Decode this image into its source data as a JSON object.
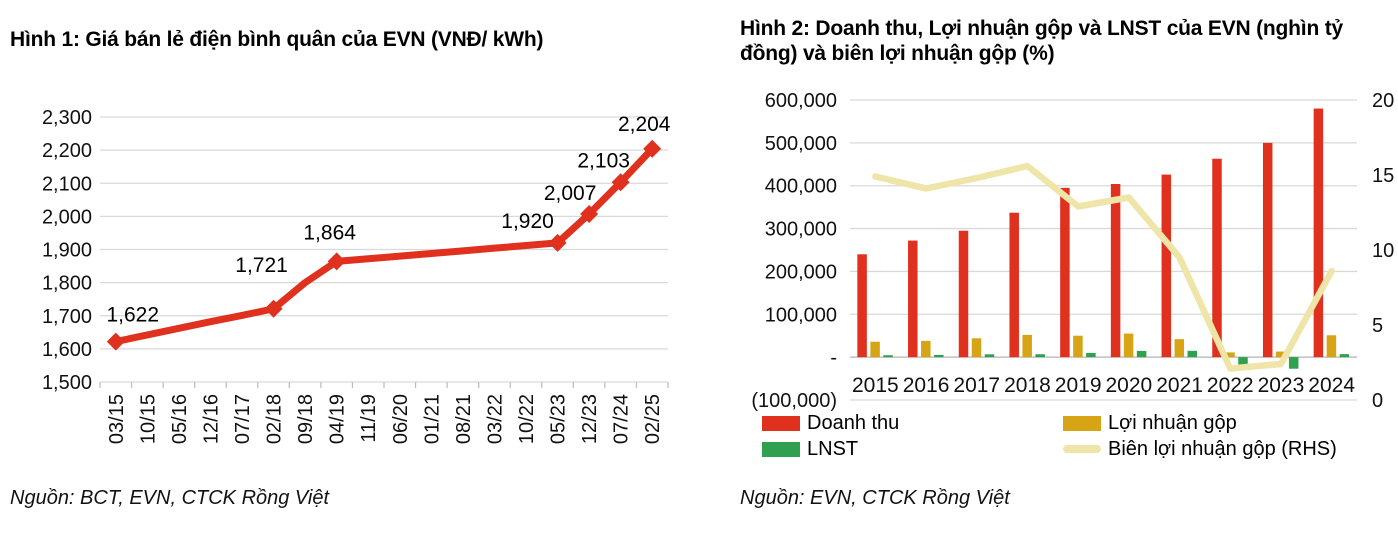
{
  "chart_data": [
    {
      "type": "line",
      "title": "Hình 1: Giá bán lẻ điện bình quân của EVN (VNĐ/ kWh)",
      "source": "Nguồn: BCT, EVN, CTCK Rồng Việt",
      "x": [
        "03/15",
        "10/15",
        "05/16",
        "12/16",
        "07/17",
        "02/18",
        "09/18",
        "04/19",
        "11/19",
        "06/20",
        "01/21",
        "08/21",
        "03/22",
        "10/22",
        "05/23",
        "12/23",
        "07/24",
        "02/25"
      ],
      "values": [
        1622,
        1642,
        1662,
        1682,
        1701,
        1721,
        1800,
        1864,
        1872,
        1880,
        1888,
        1896,
        1904,
        1912,
        1920,
        2007,
        2103,
        2204
      ],
      "labeled_points": [
        {
          "x": "03/15",
          "value": 1622,
          "label": "1,622"
        },
        {
          "x": "02/18",
          "value": 1721,
          "label": "1,721"
        },
        {
          "x": "04/19",
          "value": 1864,
          "label": "1,864"
        },
        {
          "x": "05/23",
          "value": 1920,
          "label": "1,920"
        },
        {
          "x": "12/23",
          "value": 2007,
          "label": "2,007"
        },
        {
          "x": "07/24",
          "value": 2103,
          "label": "2,103"
        },
        {
          "x": "02/25",
          "value": 2204,
          "label": "2,204"
        }
      ],
      "ylim": [
        1500,
        2300
      ],
      "yticks": [
        {
          "value": 2300,
          "label": "2,300"
        },
        {
          "value": 2200,
          "label": "2,200"
        },
        {
          "value": 2100,
          "label": "2,100"
        },
        {
          "value": 2000,
          "label": "2,000"
        },
        {
          "value": 1900,
          "label": "1,900"
        },
        {
          "value": 1800,
          "label": "1,800"
        },
        {
          "value": 1700,
          "label": "1,700"
        },
        {
          "value": 1600,
          "label": "1,600"
        },
        {
          "value": 1500,
          "label": "1,500"
        }
      ],
      "grid": true,
      "marker": "diamond",
      "line_color": "#e0301e"
    },
    {
      "type": "combo",
      "title": "Hình 2: Doanh thu, Lợi nhuận gộp và LNST của EVN (nghìn tỷ đồng) và biên lợi nhuận gộp (%)",
      "source": "Nguồn: EVN,  CTCK Rồng Việt",
      "categories": [
        "2015",
        "2016",
        "2017",
        "2018",
        "2019",
        "2020",
        "2021",
        "2022",
        "2023",
        "2024"
      ],
      "series": [
        {
          "name": "Doanh thu",
          "type": "bar",
          "axis": "left",
          "color": "#e0301e",
          "values": [
            240000,
            272000,
            295000,
            337000,
            395000,
            404000,
            426000,
            463000,
            500000,
            580000
          ]
        },
        {
          "name": "Lợi nhuận gộp",
          "type": "bar",
          "axis": "left",
          "color": "#d6a414",
          "values": [
            36000,
            38000,
            44000,
            52000,
            50000,
            55000,
            42000,
            11000,
            13000,
            51000
          ]
        },
        {
          "name": "LNST",
          "type": "bar",
          "axis": "left",
          "color": "#2fa14e",
          "values": [
            4500,
            5200,
            6600,
            6800,
            9700,
            14500,
            14700,
            -20000,
            -27000,
            7000
          ]
        },
        {
          "name": "Biên lợi nhuận gộp (RHS)",
          "type": "line",
          "axis": "right",
          "color": "#efe5a8",
          "values": [
            14.9,
            14.1,
            14.8,
            15.6,
            12.9,
            13.5,
            9.5,
            2.1,
            2.4,
            8.6
          ]
        }
      ],
      "left_axis": {
        "min": -100000,
        "max": 600000,
        "ticks": [
          {
            "value": 600000,
            "label": "600,000"
          },
          {
            "value": 500000,
            "label": "500,000"
          },
          {
            "value": 400000,
            "label": "400,000"
          },
          {
            "value": 300000,
            "label": "300,000"
          },
          {
            "value": 200000,
            "label": "200,000"
          },
          {
            "value": 100000,
            "label": "100,000"
          },
          {
            "value": 0,
            "label": "-"
          },
          {
            "value": -100000,
            "label": "(100,000)"
          }
        ]
      },
      "right_axis": {
        "min": 0,
        "max": 20,
        "ticks": [
          {
            "value": 20,
            "label": "20"
          },
          {
            "value": 15,
            "label": "15"
          },
          {
            "value": 10,
            "label": "10"
          },
          {
            "value": 5,
            "label": "5"
          },
          {
            "value": 0,
            "label": "0"
          }
        ]
      },
      "grid": true,
      "legend_position": "bottom"
    }
  ]
}
